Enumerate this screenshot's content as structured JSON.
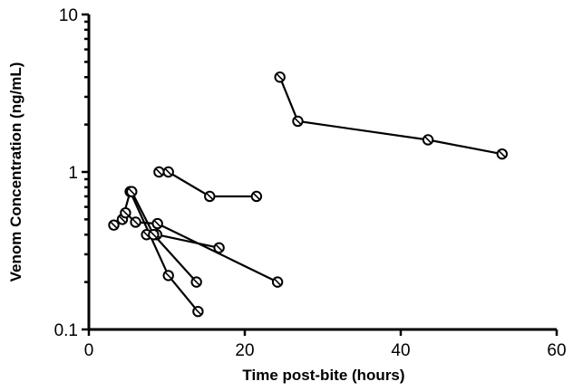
{
  "chart_data": {
    "type": "scatter",
    "xlabel": "Time post-bite (hours)",
    "ylabel": "Venom Concentration (ng/mL)",
    "xlim": [
      0,
      60
    ],
    "ylim": [
      0.1,
      10
    ],
    "yscale": "log",
    "xticks": [
      0,
      20,
      40,
      60
    ],
    "yticks": [
      0.1,
      1,
      10
    ],
    "xtick_labels": [
      "0",
      "20",
      "40",
      "60"
    ],
    "ytick_labels": [
      "0.1",
      "1",
      "10"
    ],
    "grid": false,
    "markers": "open-circle-with-slash",
    "series": [
      {
        "x": [
          24.5,
          26.8,
          43.5,
          53.0
        ],
        "y": [
          4.0,
          2.1,
          1.6,
          1.3
        ]
      },
      {
        "x": [
          9.0,
          10.2,
          15.5,
          21.5
        ],
        "y": [
          1.0,
          1.0,
          0.7,
          0.7
        ]
      },
      {
        "x": [
          3.2,
          4.3,
          5.3,
          10.2,
          14.0
        ],
        "y": [
          0.46,
          0.5,
          0.75,
          0.22,
          0.13
        ]
      },
      {
        "x": [
          4.7,
          6.0,
          8.8,
          24.2
        ],
        "y": [
          0.55,
          0.48,
          0.47,
          0.2
        ]
      },
      {
        "x": [
          7.4,
          8.7,
          16.7
        ],
        "y": [
          0.4,
          0.4,
          0.33
        ]
      },
      {
        "x": [
          5.5,
          8.3,
          13.8
        ],
        "y": [
          0.75,
          0.4,
          0.2
        ]
      }
    ]
  }
}
